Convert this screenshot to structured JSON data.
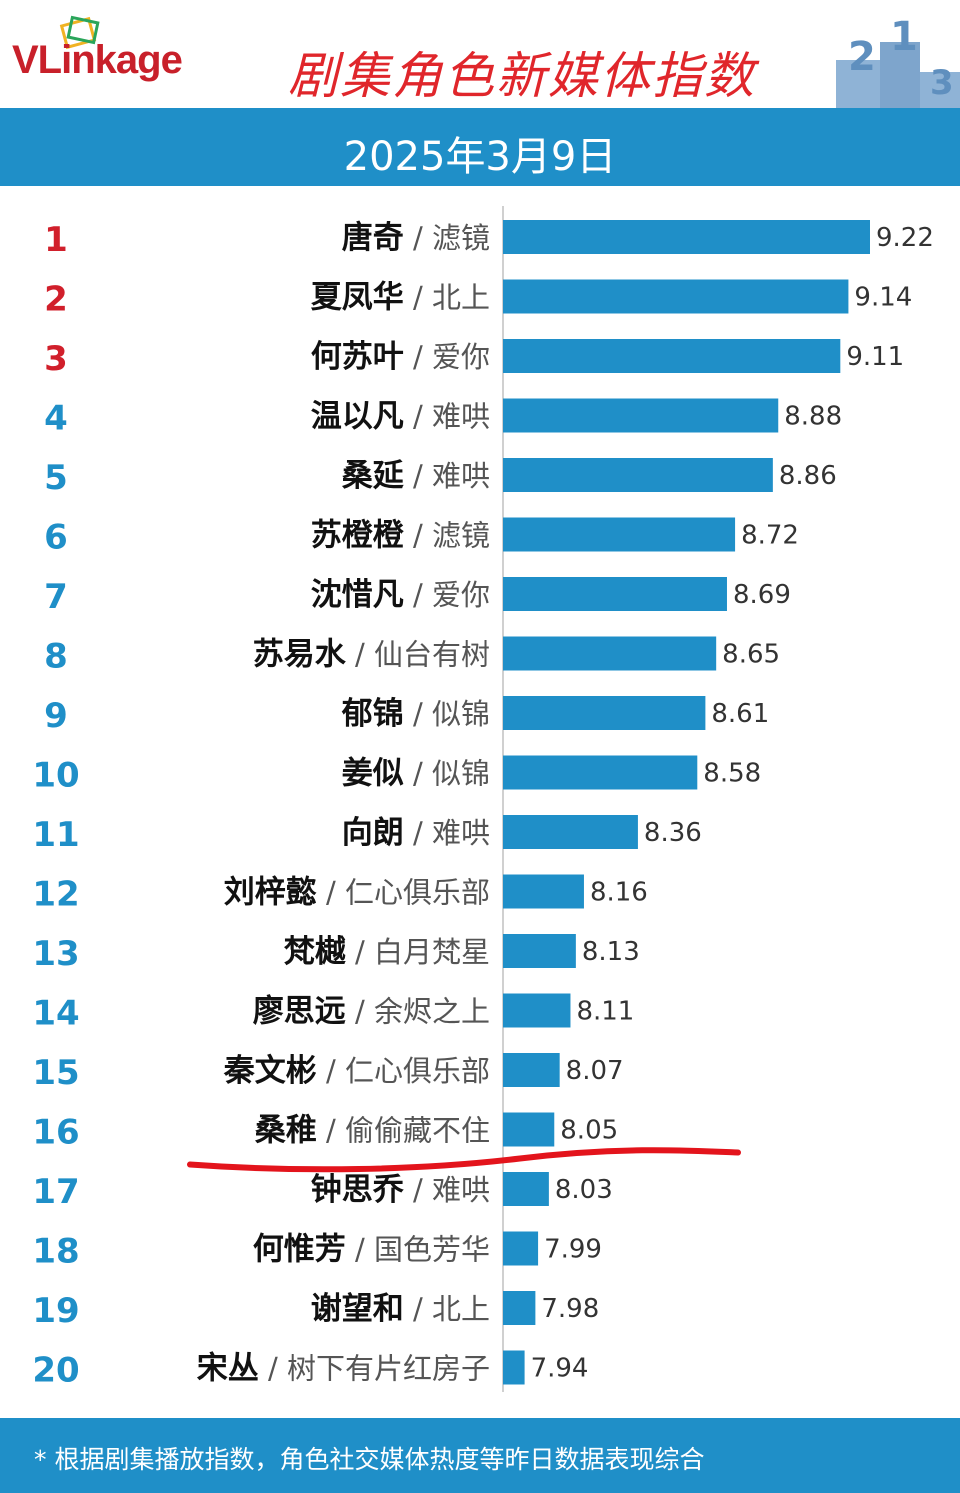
{
  "header": {
    "logo_text": "VLinkage",
    "title": "剧集角色新媒体指数",
    "date": "2025年3月9日"
  },
  "colors": {
    "bar": "#1f8fc8",
    "title": "#e0262b",
    "rank_top3": "#d11f2b",
    "rank_other": "#1f8fc8",
    "underline": "#e3141c"
  },
  "chart_data": {
    "type": "bar",
    "orientation": "horizontal",
    "title": "剧集角色新媒体指数",
    "subtitle": "2025年3月9日",
    "ranks": [
      "1",
      "2",
      "3",
      "4",
      "5",
      "6",
      "7",
      "8",
      "9",
      "10",
      "11",
      "12",
      "13",
      "14",
      "15",
      "16",
      "17",
      "18",
      "19",
      "20"
    ],
    "categories": [
      {
        "name": "唐奇",
        "drama": "滤镜"
      },
      {
        "name": "夏凤华",
        "drama": "北上"
      },
      {
        "name": "何苏叶",
        "drama": "爱你"
      },
      {
        "name": "温以凡",
        "drama": "难哄"
      },
      {
        "name": "桑延",
        "drama": "难哄"
      },
      {
        "name": "苏橙橙",
        "drama": "滤镜"
      },
      {
        "name": "沈惜凡",
        "drama": "爱你"
      },
      {
        "name": "苏易水",
        "drama": "仙台有树"
      },
      {
        "name": "郁锦",
        "drama": "似锦"
      },
      {
        "name": "姜似",
        "drama": "似锦"
      },
      {
        "name": "向朗",
        "drama": "难哄"
      },
      {
        "name": "刘梓懿",
        "drama": "仁心俱乐部"
      },
      {
        "name": "梵樾",
        "drama": "白月梵星"
      },
      {
        "name": "廖思远",
        "drama": "余烬之上"
      },
      {
        "name": "秦文彬",
        "drama": "仁心俱乐部"
      },
      {
        "name": "桑稚",
        "drama": "偷偷藏不住"
      },
      {
        "name": "钟思乔",
        "drama": "难哄"
      },
      {
        "name": "何惟芳",
        "drama": "国色芳华"
      },
      {
        "name": "谢望和",
        "drama": "北上"
      },
      {
        "name": "宋丛",
        "drama": "树下有片红房子"
      }
    ],
    "values": [
      9.22,
      9.14,
      9.11,
      8.88,
      8.86,
      8.72,
      8.69,
      8.65,
      8.61,
      8.58,
      8.36,
      8.16,
      8.13,
      8.11,
      8.07,
      8.05,
      8.03,
      7.99,
      7.98,
      7.94
    ],
    "value_labels": [
      "9.22",
      "9.14",
      "9.11",
      "8.88",
      "8.86",
      "8.72",
      "8.69",
      "8.65",
      "8.61",
      "8.58",
      "8.36",
      "8.16",
      "8.13",
      "8.11",
      "8.07",
      "8.05",
      "8.03",
      "7.99",
      "7.98",
      "7.94"
    ],
    "xlim": [
      7.86,
      9.22
    ],
    "grid": false,
    "annotation": "red hand-drawn underline below rank 16"
  },
  "footer": {
    "note": "* 根据剧集播放指数，角色社交媒体热度等昨日数据表现综合"
  }
}
